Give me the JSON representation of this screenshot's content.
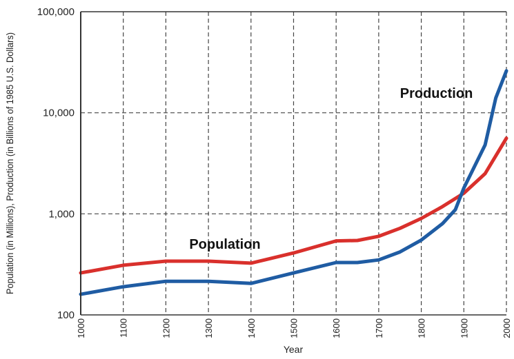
{
  "chart_data": {
    "type": "line",
    "title": "",
    "xlabel": "Year",
    "ylabel": "Population (in Millions), Production (in Billions of 1985 U.S. Dollars)",
    "yscale": "log",
    "ylim": [
      100,
      100000
    ],
    "xlim": [
      1000,
      2000
    ],
    "grid": true,
    "y_ticks": [
      {
        "value": 100,
        "label": "100"
      },
      {
        "value": 1000,
        "label": "1,000"
      },
      {
        "value": 10000,
        "label": "10,000"
      },
      {
        "value": 100000,
        "label": "100,000"
      }
    ],
    "x_ticks": [
      {
        "value": 1000,
        "label": "1000"
      },
      {
        "value": 1100,
        "label": "1100"
      },
      {
        "value": 1200,
        "label": "1200"
      },
      {
        "value": 1300,
        "label": "1300"
      },
      {
        "value": 1400,
        "label": "1400"
      },
      {
        "value": 1500,
        "label": "1500"
      },
      {
        "value": 1600,
        "label": "1600"
      },
      {
        "value": 1700,
        "label": "1700"
      },
      {
        "value": 1800,
        "label": "1800"
      },
      {
        "value": 1900,
        "label": "1900"
      },
      {
        "value": 2000,
        "label": "2000"
      }
    ],
    "series": [
      {
        "name": "Population",
        "color": "#d9302c",
        "label_at": {
          "x": 1255,
          "y": 450
        },
        "points": [
          [
            1000,
            260
          ],
          [
            1100,
            310
          ],
          [
            1200,
            340
          ],
          [
            1300,
            340
          ],
          [
            1400,
            325
          ],
          [
            1500,
            410
          ],
          [
            1600,
            540
          ],
          [
            1650,
            545
          ],
          [
            1700,
            600
          ],
          [
            1750,
            720
          ],
          [
            1800,
            900
          ],
          [
            1850,
            1180
          ],
          [
            1900,
            1600
          ],
          [
            1950,
            2500
          ],
          [
            2000,
            5600
          ]
        ]
      },
      {
        "name": "Production",
        "color": "#1f5ca3",
        "label_at": {
          "x": 1750,
          "y": 14000
        },
        "points": [
          [
            1000,
            160
          ],
          [
            1100,
            190
          ],
          [
            1200,
            215
          ],
          [
            1300,
            215
          ],
          [
            1400,
            205
          ],
          [
            1500,
            260
          ],
          [
            1600,
            330
          ],
          [
            1650,
            330
          ],
          [
            1700,
            350
          ],
          [
            1750,
            420
          ],
          [
            1800,
            550
          ],
          [
            1850,
            800
          ],
          [
            1880,
            1100
          ],
          [
            1900,
            1800
          ],
          [
            1950,
            4800
          ],
          [
            1975,
            14000
          ],
          [
            2000,
            26000
          ]
        ]
      }
    ]
  }
}
